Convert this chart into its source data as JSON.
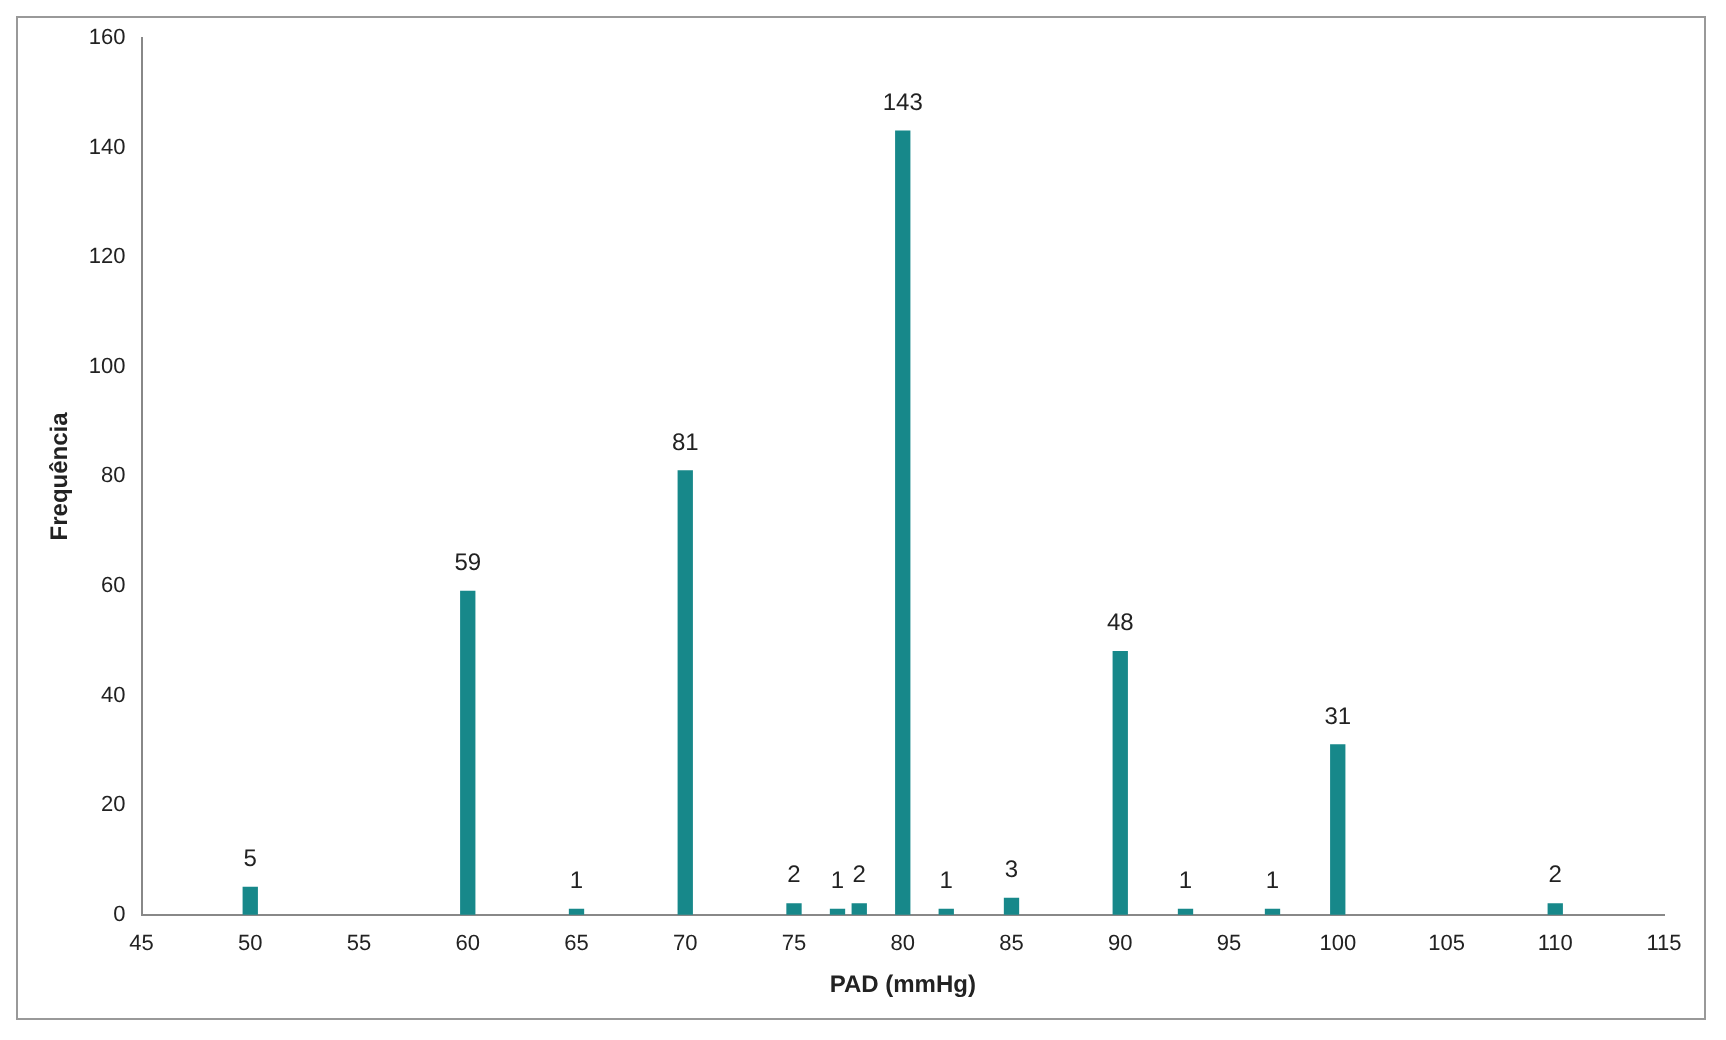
{
  "chart_data": {
    "type": "bar",
    "xlabel": "PAD (mmHg)",
    "ylabel": "Frequência",
    "x": [
      50,
      60,
      65,
      70,
      75,
      77,
      78,
      80,
      82,
      85,
      90,
      93,
      97,
      100,
      110
    ],
    "values": [
      5,
      59,
      1,
      81,
      2,
      1,
      2,
      143,
      1,
      3,
      48,
      1,
      1,
      31,
      2
    ],
    "color": "#17888a",
    "xlim": [
      45,
      115
    ],
    "xticks": [
      45,
      50,
      55,
      60,
      65,
      70,
      75,
      80,
      85,
      90,
      95,
      100,
      105,
      110,
      115
    ],
    "ylim": [
      0,
      160
    ],
    "yticks": [
      0,
      20,
      40,
      60,
      80,
      100,
      120,
      140,
      160
    ],
    "grid": false,
    "legend": false,
    "data_labels": true
  }
}
